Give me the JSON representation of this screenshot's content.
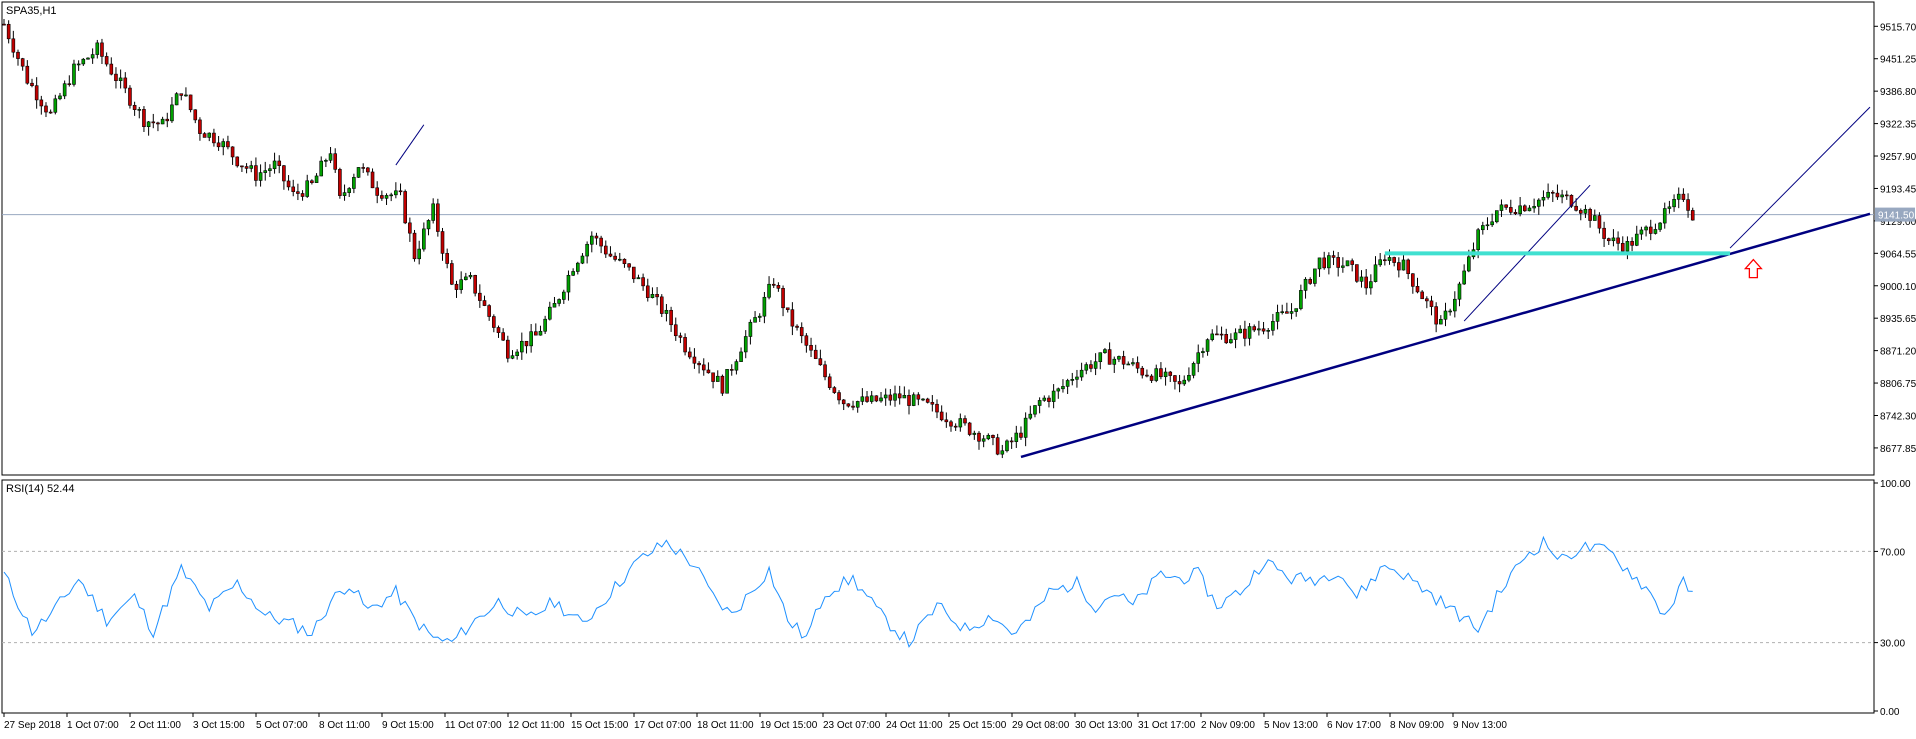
{
  "chart_data": [
    {
      "type": "candlestick",
      "title": "SPA35,H1",
      "series_name": "SPA35",
      "timeframe": "H1",
      "ylim": [
        8630,
        9560
      ],
      "ytick_labels": [
        "9515.70",
        "9451.25",
        "9386.80",
        "9322.35",
        "9257.90",
        "9193.45",
        "9129.00",
        "9064.55",
        "9000.10",
        "8935.65",
        "8871.20",
        "8806.75",
        "8742.30",
        "8677.85"
      ],
      "current_price": "9141.50",
      "grid": false,
      "close_path": [
        [
          0,
          9520
        ],
        [
          5,
          9410
        ],
        [
          10,
          9340
        ],
        [
          15,
          9430
        ],
        [
          20,
          9470
        ],
        [
          25,
          9400
        ],
        [
          30,
          9330
        ],
        [
          34,
          9320
        ],
        [
          38,
          9390
        ],
        [
          42,
          9310
        ],
        [
          46,
          9290
        ],
        [
          50,
          9250
        ],
        [
          54,
          9220
        ],
        [
          58,
          9240
        ],
        [
          62,
          9180
        ],
        [
          66,
          9200
        ],
        [
          70,
          9270
        ],
        [
          72,
          9170
        ],
        [
          76,
          9240
        ],
        [
          80,
          9190
        ],
        [
          85,
          9175
        ],
        [
          88,
          9060
        ],
        [
          92,
          9150
        ],
        [
          96,
          9000
        ],
        [
          100,
          9010
        ],
        [
          104,
          8940
        ],
        [
          108,
          8870
        ],
        [
          114,
          8900
        ],
        [
          118,
          8960
        ],
        [
          122,
          9040
        ],
        [
          126,
          9100
        ],
        [
          130,
          9060
        ],
        [
          134,
          9030
        ],
        [
          138,
          8990
        ],
        [
          142,
          8940
        ],
        [
          146,
          8880
        ],
        [
          150,
          8840
        ],
        [
          154,
          8800
        ],
        [
          158,
          8880
        ],
        [
          162,
          8950
        ],
        [
          165,
          9010
        ],
        [
          168,
          8940
        ],
        [
          172,
          8880
        ],
        [
          176,
          8820
        ],
        [
          180,
          8770
        ],
        [
          186,
          8770
        ],
        [
          192,
          8780
        ],
        [
          198,
          8760
        ],
        [
          204,
          8730
        ],
        [
          210,
          8700
        ],
        [
          214,
          8670
        ],
        [
          218,
          8710
        ],
        [
          222,
          8770
        ],
        [
          226,
          8790
        ],
        [
          230,
          8830
        ],
        [
          236,
          8860
        ],
        [
          240,
          8850
        ],
        [
          244,
          8830
        ],
        [
          248,
          8820
        ],
        [
          252,
          8800
        ],
        [
          258,
          8900
        ],
        [
          264,
          8900
        ],
        [
          270,
          8920
        ],
        [
          276,
          8950
        ],
        [
          282,
          9050
        ],
        [
          288,
          9040
        ],
        [
          292,
          9000
        ],
        [
          296,
          9060
        ],
        [
          300,
          9040
        ],
        [
          304,
          8980
        ],
        [
          308,
          8920
        ],
        [
          312,
          9000
        ],
        [
          316,
          9100
        ],
        [
          320,
          9150
        ],
        [
          326,
          9160
        ],
        [
          332,
          9180
        ],
        [
          336,
          9170
        ],
        [
          340,
          9140
        ],
        [
          344,
          9090
        ],
        [
          348,
          9080
        ],
        [
          352,
          9110
        ],
        [
          356,
          9140
        ],
        [
          360,
          9180
        ],
        [
          362,
          9141.5
        ]
      ],
      "annotations": [
        {
          "type": "trendline",
          "from": [
            218,
            8660
          ],
          "to": [
            400,
            9143
          ],
          "color": "#000080",
          "style": "thick"
        },
        {
          "type": "trendline",
          "from": [
            313,
            8930
          ],
          "to": [
            340,
            9200
          ],
          "color": "#000080",
          "style": "thin"
        },
        {
          "type": "trendline",
          "from": [
            370,
            9075
          ],
          "to": [
            400,
            9355
          ],
          "color": "#000080",
          "style": "thin"
        },
        {
          "type": "trendline",
          "from": [
            84,
            9240
          ],
          "to": [
            90,
            9320
          ],
          "color": "#000080",
          "style": "thin"
        },
        {
          "type": "horizontal",
          "y": 9064.55,
          "from": 296,
          "to": 370,
          "color": "#40e0d0",
          "label": ""
        },
        {
          "type": "arrow-up",
          "at": [
            375,
            9060
          ],
          "color": "#ff0000"
        }
      ],
      "price_line": 9141.5,
      "colors": {
        "up": "#000000",
        "down": "#000000",
        "up_body": "#00a000",
        "down_body": "#c00000",
        "axis": "#000000",
        "price_line": "#98a8c0"
      }
    },
    {
      "type": "line",
      "title": "RSI(14) 52.44",
      "indicator": "RSI(14)",
      "value_label": "52.44",
      "ylim": [
        0,
        100
      ],
      "ytick_labels": [
        "100.00",
        "70.00",
        "30.00",
        "0.00"
      ],
      "levels": [
        70,
        30
      ],
      "color": "#1e90ff",
      "values_path": [
        [
          0,
          60
        ],
        [
          6,
          35
        ],
        [
          10,
          42
        ],
        [
          16,
          58
        ],
        [
          22,
          40
        ],
        [
          28,
          50
        ],
        [
          32,
          35
        ],
        [
          38,
          62
        ],
        [
          44,
          45
        ],
        [
          50,
          56
        ],
        [
          56,
          42
        ],
        [
          62,
          38
        ],
        [
          66,
          34
        ],
        [
          70,
          48
        ],
        [
          74,
          56
        ],
        [
          78,
          44
        ],
        [
          84,
          52
        ],
        [
          88,
          40
        ],
        [
          92,
          32
        ],
        [
          96,
          30
        ],
        [
          100,
          38
        ],
        [
          106,
          48
        ],
        [
          112,
          40
        ],
        [
          118,
          48
        ],
        [
          124,
          38
        ],
        [
          130,
          52
        ],
        [
          136,
          66
        ],
        [
          142,
          74
        ],
        [
          148,
          64
        ],
        [
          152,
          50
        ],
        [
          156,
          42
        ],
        [
          160,
          52
        ],
        [
          164,
          62
        ],
        [
          168,
          40
        ],
        [
          172,
          32
        ],
        [
          176,
          52
        ],
        [
          182,
          58
        ],
        [
          188,
          42
        ],
        [
          194,
          30
        ],
        [
          200,
          46
        ],
        [
          206,
          36
        ],
        [
          212,
          42
        ],
        [
          216,
          34
        ],
        [
          220,
          40
        ],
        [
          224,
          52
        ],
        [
          230,
          56
        ],
        [
          234,
          46
        ],
        [
          238,
          52
        ],
        [
          242,
          46
        ],
        [
          248,
          60
        ],
        [
          252,
          58
        ],
        [
          256,
          60
        ],
        [
          260,
          46
        ],
        [
          266,
          54
        ],
        [
          270,
          66
        ],
        [
          276,
          58
        ],
        [
          282,
          58
        ],
        [
          286,
          62
        ],
        [
          290,
          50
        ],
        [
          296,
          64
        ],
        [
          300,
          60
        ],
        [
          304,
          54
        ],
        [
          308,
          48
        ],
        [
          312,
          42
        ],
        [
          316,
          36
        ],
        [
          320,
          50
        ],
        [
          326,
          68
        ],
        [
          330,
          74
        ],
        [
          334,
          66
        ],
        [
          338,
          72
        ],
        [
          344,
          70
        ],
        [
          348,
          62
        ],
        [
          352,
          54
        ],
        [
          356,
          42
        ],
        [
          360,
          56
        ],
        [
          362,
          52.44
        ]
      ]
    }
  ],
  "x_axis": {
    "labels": [
      "27 Sep 2018",
      "1 Oct 07:00",
      "2 Oct 11:00",
      "3 Oct 15:00",
      "5 Oct 07:00",
      "8 Oct 11:00",
      "9 Oct 15:00",
      "11 Oct 07:00",
      "12 Oct 11:00",
      "15 Oct 15:00",
      "17 Oct 07:00",
      "18 Oct 11:00",
      "19 Oct 15:00",
      "23 Oct 07:00",
      "24 Oct 11:00",
      "25 Oct 15:00",
      "29 Oct 08:00",
      "30 Oct 13:00",
      "31 Oct 17:00",
      "2 Nov 09:00",
      "5 Nov 13:00",
      "6 Nov 17:00",
      "8 Nov 09:00",
      "9 Nov 13:00"
    ]
  }
}
